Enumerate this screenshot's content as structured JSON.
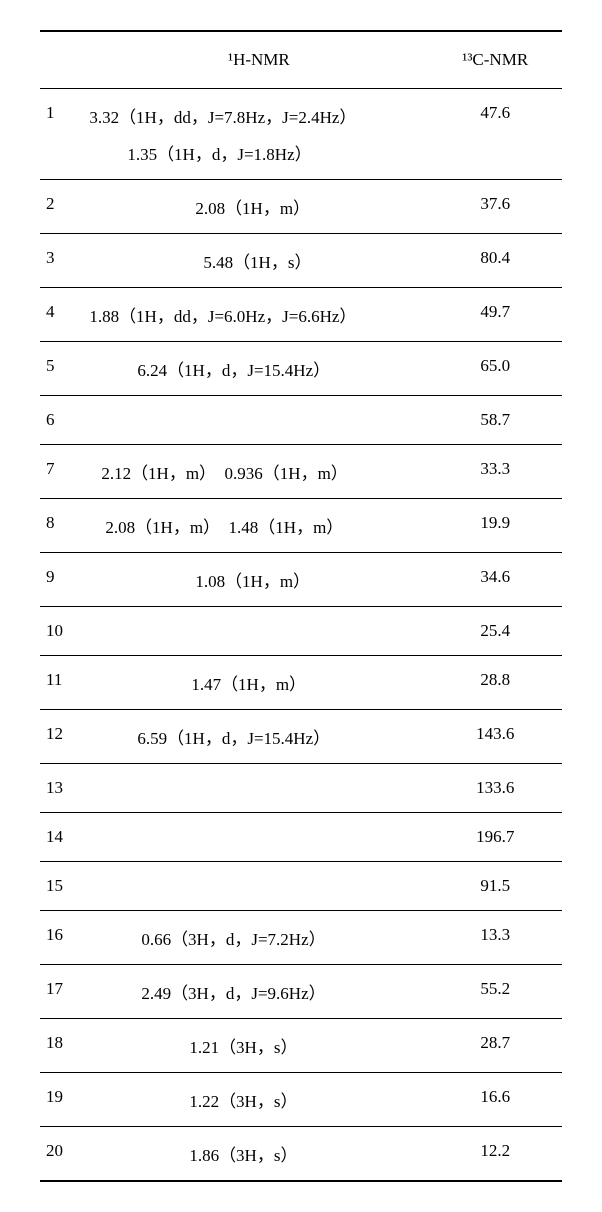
{
  "table": {
    "header": {
      "h_nmr": "¹H-NMR",
      "c_nmr": "¹³C-NMR"
    },
    "rows": [
      {
        "idx": "1",
        "h": "3.32（1H，dd，J=7.8Hz，J=2.4Hz）",
        "h_indent": "0px",
        "h_sub": "1.35（1H，d，J=1.8Hz）",
        "h_sub_indent": "38px",
        "c": "47.6"
      },
      {
        "idx": "2",
        "h": "2.08（1H，m）",
        "h_indent": "106px",
        "c": "37.6"
      },
      {
        "idx": "3",
        "h": "5.48（1H，s）",
        "h_indent": "114px",
        "c": "80.4"
      },
      {
        "idx": "4",
        "h": "1.88（1H，dd，J=6.0Hz，J=6.6Hz）",
        "h_indent": "0px",
        "c": "49.7"
      },
      {
        "idx": "5",
        "h": "6.24（1H，d，J=15.4Hz）",
        "h_indent": "48px",
        "c": "65.0"
      },
      {
        "idx": "6",
        "h": "",
        "h_indent": "0px",
        "c": "58.7"
      },
      {
        "idx": "7",
        "h": "2.12（1H，m）  0.936（1H，m）",
        "h_indent": "12px",
        "c": "33.3"
      },
      {
        "idx": "8",
        "h": "2.08（1H，m）  1.48（1H，m）",
        "h_indent": "16px",
        "c": "19.9"
      },
      {
        "idx": "9",
        "h": "1.08（1H，m）",
        "h_indent": "106px",
        "c": "34.6"
      },
      {
        "idx": "10",
        "h": "",
        "h_indent": "0px",
        "c": "25.4"
      },
      {
        "idx": "11",
        "h": "1.47（1H，m）",
        "h_indent": "102px",
        "c": "28.8"
      },
      {
        "idx": "12",
        "h": "6.59（1H，d，J=15.4Hz）",
        "h_indent": "48px",
        "c": "143.6"
      },
      {
        "idx": "13",
        "h": "",
        "h_indent": "0px",
        "c": "133.6"
      },
      {
        "idx": "14",
        "h": "",
        "h_indent": "0px",
        "c": "196.7"
      },
      {
        "idx": "15",
        "h": "",
        "h_indent": "0px",
        "c": "91.5"
      },
      {
        "idx": "16",
        "h": "0.66（3H，d，J=7.2Hz）",
        "h_indent": "52px",
        "c": "13.3"
      },
      {
        "idx": "17",
        "h": "2.49（3H，d，J=9.6Hz）",
        "h_indent": "52px",
        "c": "55.2"
      },
      {
        "idx": "18",
        "h": "1.21（3H，s）",
        "h_indent": "100px",
        "c": "28.7"
      },
      {
        "idx": "19",
        "h": "1.22（3H，s）",
        "h_indent": "100px",
        "c": "16.6"
      },
      {
        "idx": "20",
        "h": "1.86（3H，s）",
        "h_indent": "100px",
        "c": "12.2"
      }
    ]
  }
}
